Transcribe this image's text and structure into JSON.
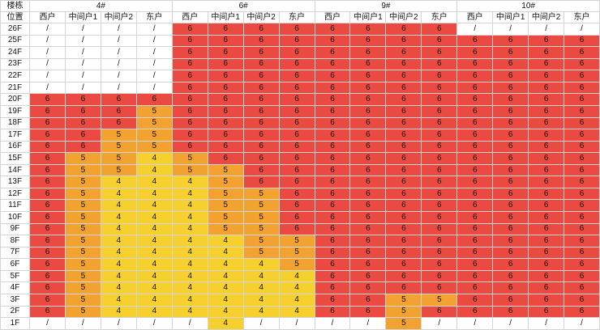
{
  "colors": {
    "grid_line": "#d4d4d4",
    "group_divider": "#e8473f",
    "text": "#141414",
    "red_level": "#ea4a41",
    "orange_level": "#f2a231",
    "yellow_level": "#f6d02f",
    "empty_cell": "#ffffff"
  },
  "chart_data": {
    "type": "heatmap",
    "title": "",
    "corner_top": "楼栋",
    "corner_bottom": "位置",
    "column_groups": [
      "4#",
      "6#",
      "9#",
      "10#"
    ],
    "sub_columns": [
      "西户",
      "中间户1",
      "中间户2",
      "东户"
    ],
    "rows": [
      "26F",
      "25F",
      "24F",
      "23F",
      "22F",
      "21F",
      "20F",
      "19F",
      "18F",
      "17F",
      "16F",
      "15F",
      "14F",
      "13F",
      "12F",
      "11F",
      "10F",
      "9F",
      "8F",
      "7F",
      "6F",
      "5F",
      "4F",
      "3F",
      "2F",
      "1F"
    ],
    "values": [
      [
        "/",
        "/",
        "/",
        "/",
        "6",
        "6",
        "6",
        "6",
        "6",
        "6",
        "6",
        "6",
        "/",
        "/",
        "/",
        "/"
      ],
      [
        "/",
        "/",
        "/",
        "/",
        "6",
        "6",
        "6",
        "6",
        "6",
        "6",
        "6",
        "6",
        "6",
        "6",
        "6",
        "6"
      ],
      [
        "/",
        "/",
        "/",
        "/",
        "6",
        "6",
        "6",
        "6",
        "6",
        "6",
        "6",
        "6",
        "6",
        "6",
        "6",
        "6"
      ],
      [
        "/",
        "/",
        "/",
        "/",
        "6",
        "6",
        "6",
        "6",
        "6",
        "6",
        "6",
        "6",
        "6",
        "6",
        "6",
        "6"
      ],
      [
        "/",
        "/",
        "/",
        "/",
        "6",
        "6",
        "6",
        "6",
        "6",
        "6",
        "6",
        "6",
        "6",
        "6",
        "6",
        "6"
      ],
      [
        "/",
        "/",
        "/",
        "/",
        "6",
        "6",
        "6",
        "6",
        "6",
        "6",
        "6",
        "6",
        "6",
        "6",
        "6",
        "6"
      ],
      [
        "6",
        "6",
        "6",
        "6",
        "6",
        "6",
        "6",
        "6",
        "6",
        "6",
        "6",
        "6",
        "6",
        "6",
        "6",
        "6"
      ],
      [
        "6",
        "6",
        "6",
        "5",
        "6",
        "6",
        "6",
        "6",
        "6",
        "6",
        "6",
        "6",
        "6",
        "6",
        "6",
        "6"
      ],
      [
        "6",
        "6",
        "6",
        "5",
        "6",
        "6",
        "6",
        "6",
        "6",
        "6",
        "6",
        "6",
        "6",
        "6",
        "6",
        "6"
      ],
      [
        "6",
        "6",
        "5",
        "5",
        "6",
        "6",
        "6",
        "6",
        "6",
        "6",
        "6",
        "6",
        "6",
        "6",
        "6",
        "6"
      ],
      [
        "6",
        "6",
        "5",
        "5",
        "6",
        "6",
        "6",
        "6",
        "6",
        "6",
        "6",
        "6",
        "6",
        "6",
        "6",
        "6"
      ],
      [
        "6",
        "5",
        "5",
        "4",
        "5",
        "6",
        "6",
        "6",
        "6",
        "6",
        "6",
        "6",
        "6",
        "6",
        "6",
        "6"
      ],
      [
        "6",
        "5",
        "5",
        "4",
        "5",
        "5",
        "6",
        "6",
        "6",
        "6",
        "6",
        "6",
        "6",
        "6",
        "6",
        "6"
      ],
      [
        "6",
        "5",
        "4",
        "4",
        "4",
        "5",
        "6",
        "6",
        "6",
        "6",
        "6",
        "6",
        "6",
        "6",
        "6",
        "6"
      ],
      [
        "6",
        "5",
        "4",
        "4",
        "4",
        "5",
        "5",
        "6",
        "6",
        "6",
        "6",
        "6",
        "6",
        "6",
        "6",
        "6"
      ],
      [
        "6",
        "5",
        "4",
        "4",
        "4",
        "5",
        "5",
        "6",
        "6",
        "6",
        "6",
        "6",
        "6",
        "6",
        "6",
        "6"
      ],
      [
        "6",
        "5",
        "4",
        "4",
        "4",
        "5",
        "5",
        "6",
        "6",
        "6",
        "6",
        "6",
        "6",
        "6",
        "6",
        "6"
      ],
      [
        "6",
        "5",
        "4",
        "4",
        "4",
        "5",
        "5",
        "6",
        "6",
        "6",
        "6",
        "6",
        "6",
        "6",
        "6",
        "6"
      ],
      [
        "6",
        "5",
        "4",
        "4",
        "4",
        "4",
        "5",
        "5",
        "6",
        "6",
        "6",
        "6",
        "6",
        "6",
        "6",
        "6"
      ],
      [
        "6",
        "5",
        "4",
        "4",
        "4",
        "4",
        "5",
        "5",
        "6",
        "6",
        "6",
        "6",
        "6",
        "6",
        "6",
        "6"
      ],
      [
        "6",
        "5",
        "4",
        "4",
        "4",
        "4",
        "4",
        "5",
        "6",
        "6",
        "6",
        "6",
        "6",
        "6",
        "6",
        "6"
      ],
      [
        "6",
        "5",
        "4",
        "4",
        "4",
        "4",
        "4",
        "4",
        "6",
        "6",
        "6",
        "6",
        "6",
        "6",
        "6",
        "6"
      ],
      [
        "6",
        "5",
        "4",
        "4",
        "4",
        "4",
        "4",
        "4",
        "6",
        "6",
        "6",
        "6",
        "6",
        "6",
        "6",
        "6"
      ],
      [
        "6",
        "5",
        "4",
        "4",
        "4",
        "4",
        "4",
        "4",
        "6",
        "6",
        "5",
        "5",
        "6",
        "6",
        "6",
        "6"
      ],
      [
        "6",
        "5",
        "4",
        "4",
        "4",
        "4",
        "4",
        "4",
        "6",
        "6",
        "5",
        "6",
        "6",
        "6",
        "6",
        "6"
      ],
      [
        "/",
        "/",
        "/",
        "/",
        "/",
        "4",
        "/",
        "/",
        "/",
        "/",
        "5",
        "/",
        "/",
        "/",
        "/",
        "/"
      ]
    ],
    "value_colors": {
      "6": "#ea4a41",
      "5": "#f2a231",
      "4": "#f6d02f",
      "/": "#ffffff"
    }
  }
}
